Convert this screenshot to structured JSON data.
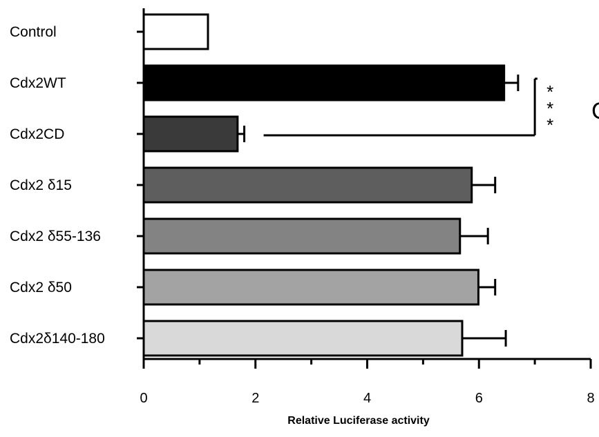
{
  "chart_data": {
    "type": "bar",
    "orientation": "horizontal",
    "categories": [
      "Control",
      "Cdx2WT",
      "Cdx2CD",
      "Cdx2 δ15",
      "Cdx2 δ55-136",
      "Cdx2 δ50",
      "Cdx2δ140-180"
    ],
    "values": [
      1.15,
      6.45,
      1.68,
      5.87,
      5.66,
      5.99,
      5.7
    ],
    "errors": [
      0,
      0.25,
      0.12,
      0.42,
      0.5,
      0.3,
      0.78
    ],
    "colors": [
      "#ffffff",
      "#000000",
      "#3a3a3a",
      "#5e5e5e",
      "#838383",
      "#a3a3a3",
      "#d9d9d9"
    ],
    "xlabel": "Relative Luciferase activity",
    "xlim": [
      0,
      8
    ],
    "xticks": [
      "0",
      "2",
      "4",
      "6",
      "8"
    ],
    "significance": {
      "between": [
        "Cdx2WT",
        "Cdx2CD"
      ],
      "label": "* * *",
      "bracket_x": 7.0
    },
    "panel_letter": "C",
    "grid": false
  }
}
